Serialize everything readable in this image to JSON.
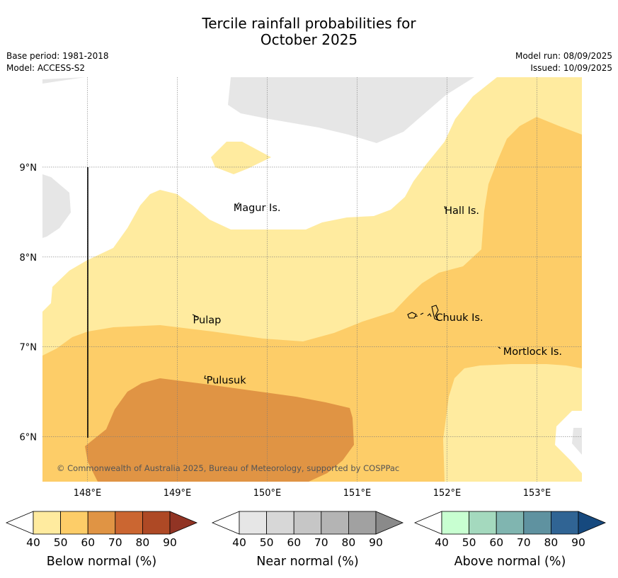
{
  "title": {
    "line1": "Tercile rainfall probabilities for",
    "line2": "October 2025"
  },
  "meta": {
    "base_period": "Base period: 1981-2018",
    "model": "Model: ACCESS-S2",
    "model_run": "Model run: 08/09/2025",
    "issued": "Issued: 10/09/2025"
  },
  "map": {
    "lon_range": [
      147.5,
      153.5
    ],
    "lat_range": [
      5.5,
      10.0
    ],
    "lon_ticks": [
      "148°E",
      "149°E",
      "150°E",
      "151°E",
      "152°E",
      "153°E"
    ],
    "lat_ticks": [
      "9°N",
      "8°N",
      "7°N",
      "6°N"
    ],
    "gridlines": true,
    "places": [
      {
        "name": "Magur Is.",
        "lon": 149.6,
        "lat": 8.55
      },
      {
        "name": "Hall Is.",
        "lon": 151.95,
        "lat": 8.52
      },
      {
        "name": "Pulap",
        "lon": 149.15,
        "lat": 7.3
      },
      {
        "name": "Chuuk Is.",
        "lon": 151.85,
        "lat": 7.33
      },
      {
        "name": "Mortlock Is.",
        "lon": 152.6,
        "lat": 6.95
      },
      {
        "name": "Pulusuk",
        "lon": 149.3,
        "lat": 6.63
      }
    ],
    "copyright": "© Commonwealth of Australia 2025, Bureau of Meteorology, supported by COSPPac",
    "colors": {
      "below_50": "#ffeb9f",
      "below_60": "#fdcd68",
      "below_70": "#e09444",
      "near_50": "#e6e6e6"
    }
  },
  "legends": [
    {
      "title": "Below normal (%)",
      "ticks": [
        "40",
        "50",
        "60",
        "70",
        "80",
        "90"
      ],
      "colors": [
        "#ffeb9f",
        "#fdcd68",
        "#e09444",
        "#cb6631",
        "#ae4925"
      ],
      "extend_color": "#913424"
    },
    {
      "title": "Near normal (%)",
      "ticks": [
        "40",
        "50",
        "60",
        "70",
        "80",
        "90"
      ],
      "colors": [
        "#e6e6e6",
        "#d7d7d7",
        "#c6c6c6",
        "#b4b4b4",
        "#a1a1a1"
      ],
      "extend_color": "#8a8a8a"
    },
    {
      "title": "Above normal (%)",
      "ticks": [
        "40",
        "50",
        "60",
        "70",
        "80",
        "90"
      ],
      "colors": [
        "#c8ffd1",
        "#a4d9be",
        "#80b5b0",
        "#5f92a0",
        "#306494"
      ],
      "extend_color": "#16497e"
    }
  ]
}
